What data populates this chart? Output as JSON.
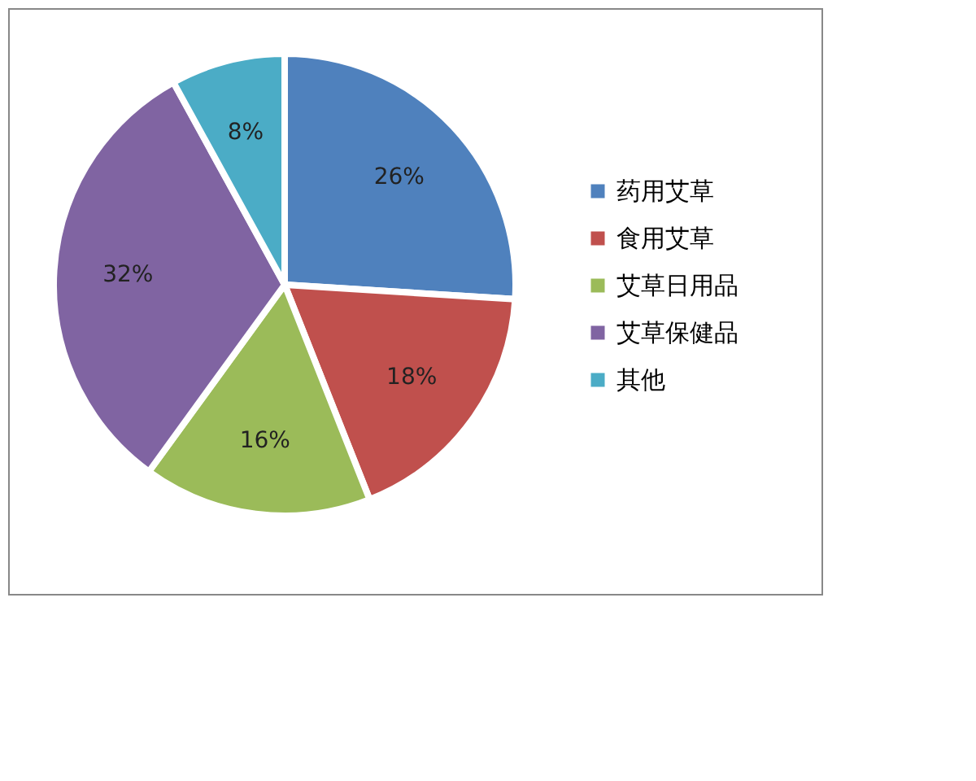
{
  "chart_data": {
    "type": "pie",
    "categories": [
      "药用艾草",
      "食用艾草",
      "艾草日用品",
      "艾草保健品",
      "其他"
    ],
    "values": [
      26,
      18,
      16,
      32,
      8
    ],
    "colors": [
      "#4f81bd",
      "#c0504d",
      "#9bbb59",
      "#8064a2",
      "#4bacc6"
    ],
    "value_labels": [
      "26%",
      "18%",
      "16%",
      "32%",
      "8%"
    ],
    "legend": "right"
  }
}
